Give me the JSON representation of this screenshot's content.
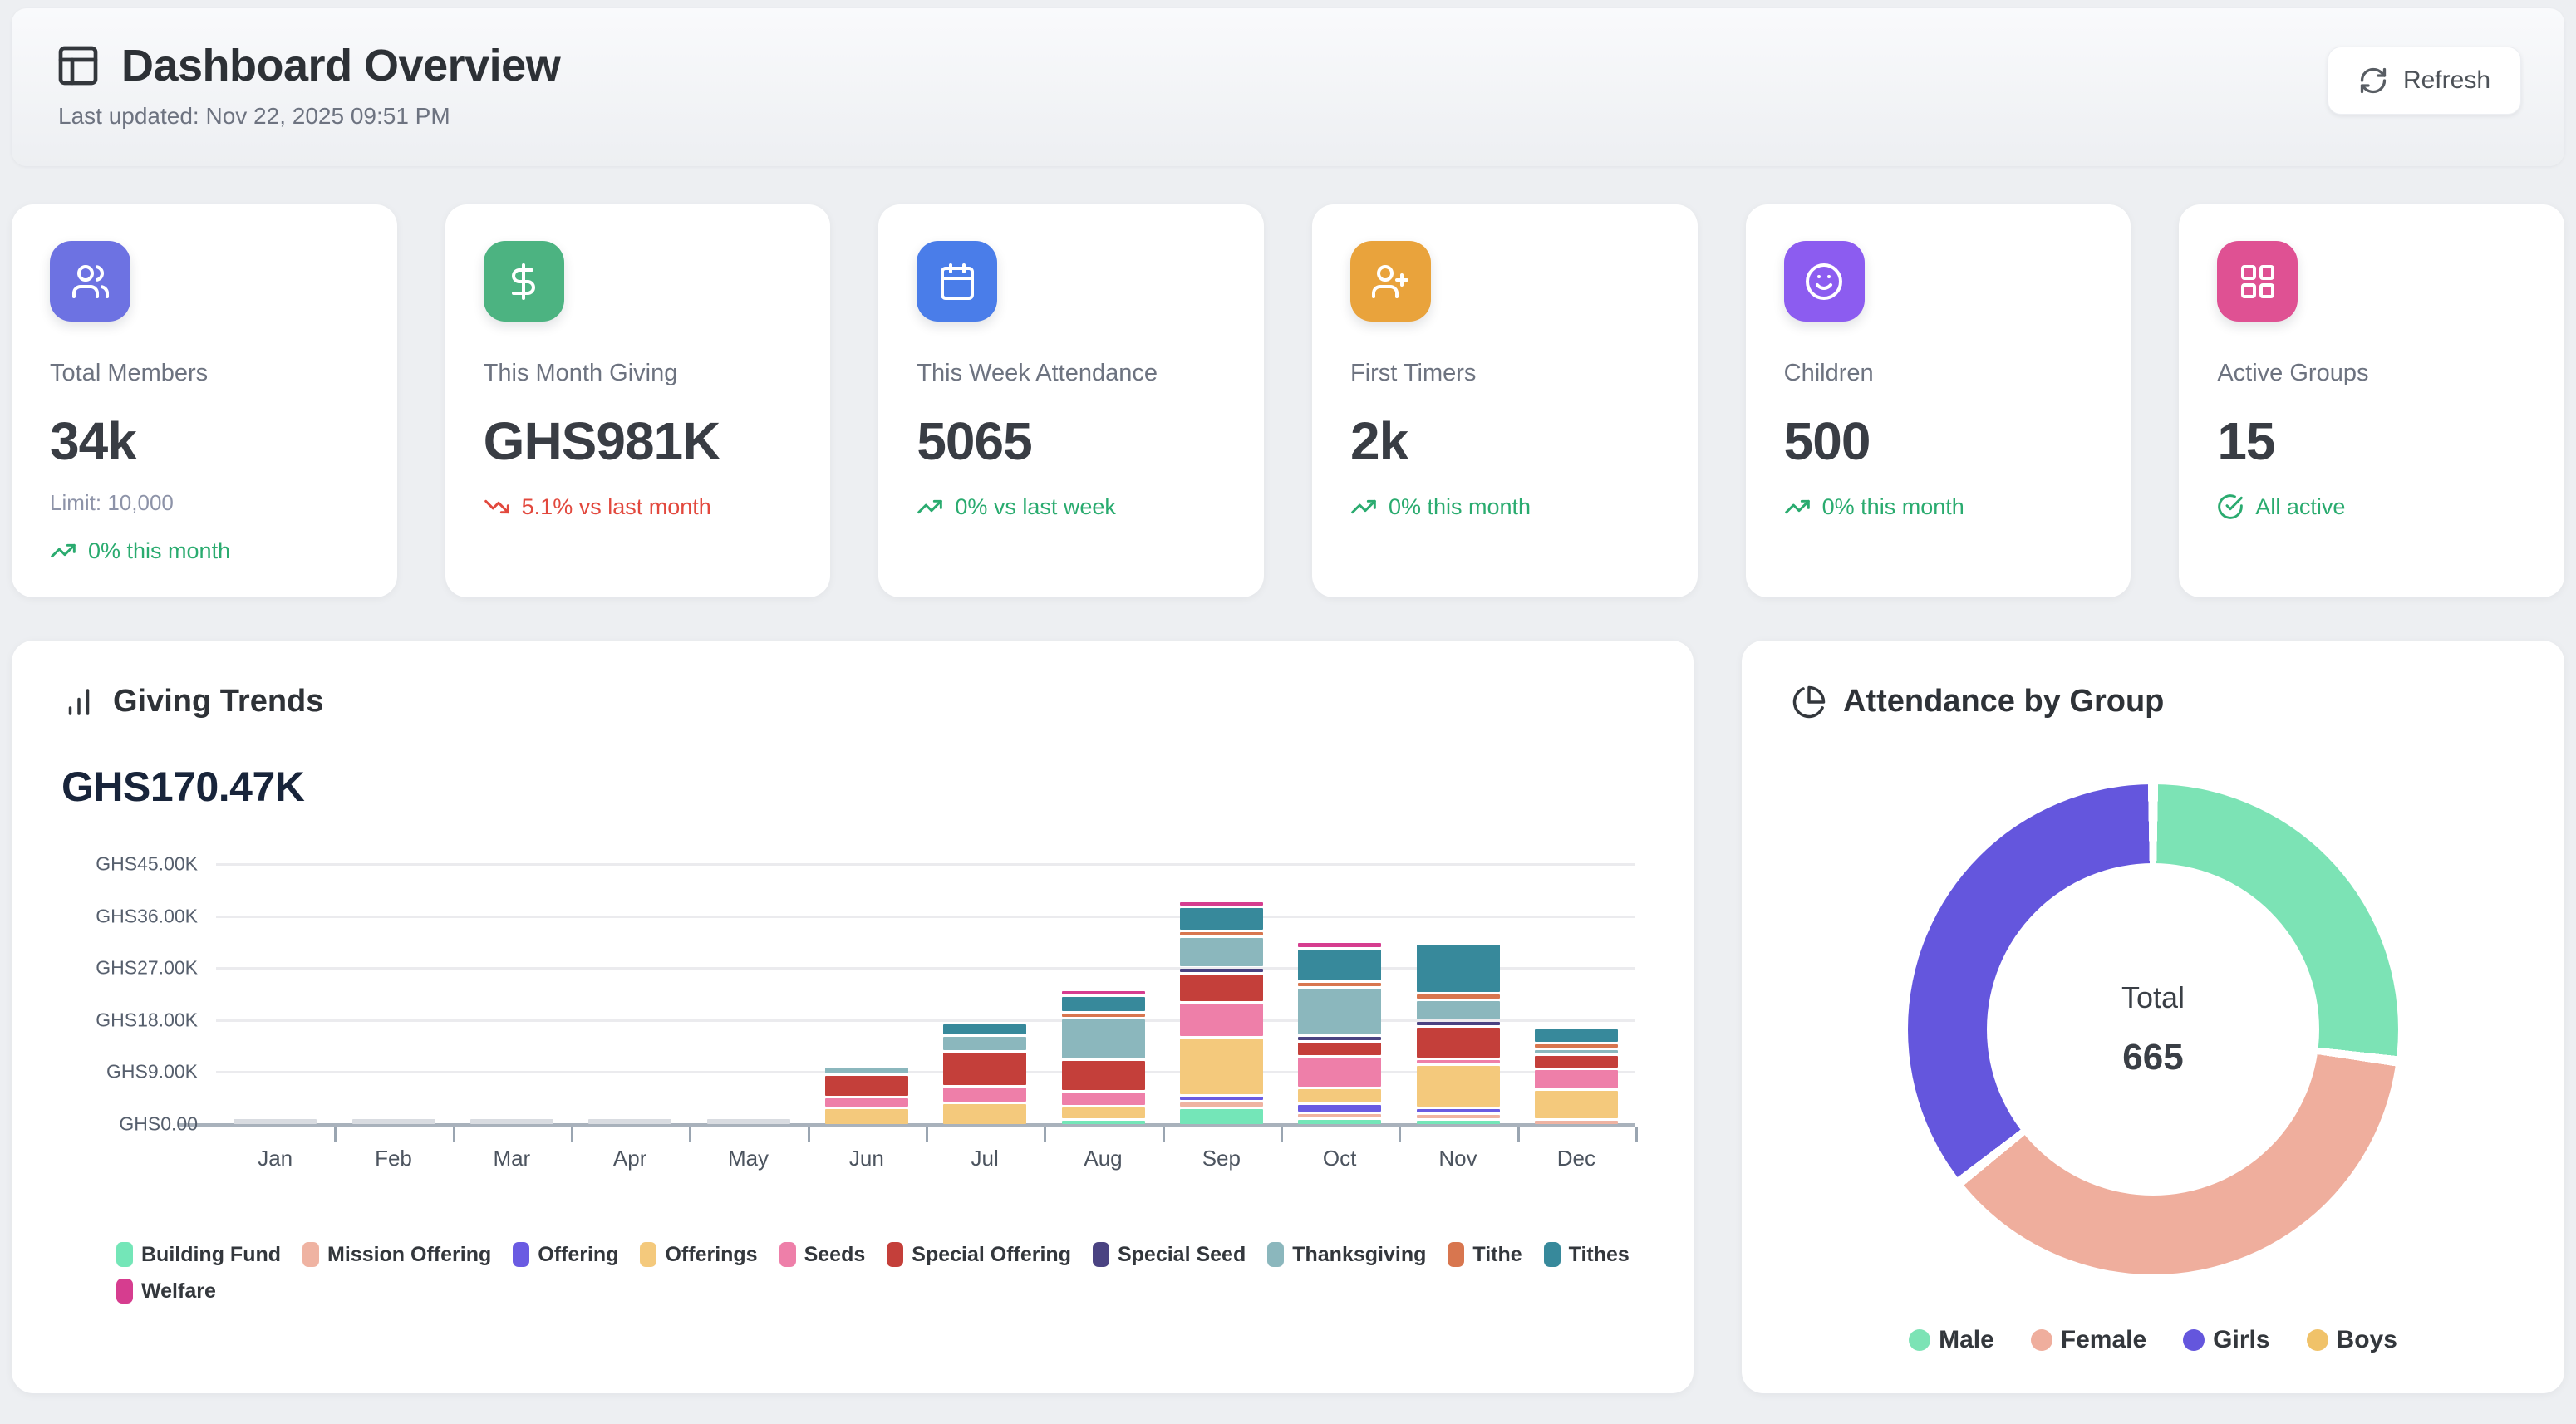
{
  "header": {
    "title": "Dashboard Overview",
    "last_updated": "Last updated: Nov 22, 2025 09:51 PM",
    "refresh_label": "Refresh"
  },
  "stats": [
    {
      "label": "Total Members",
      "value": "34k",
      "sub": "Limit: 10,000",
      "trend": "0% this month",
      "trend_dir": "up",
      "icon": "users-icon",
      "color": "#6d72e2"
    },
    {
      "label": "This Month Giving",
      "value": "GHS981K",
      "trend": "5.1% vs last month",
      "trend_dir": "down",
      "icon": "dollar-icon",
      "color": "#4cb381"
    },
    {
      "label": "This Week Attendance",
      "value": "5065",
      "trend": "0% vs last week",
      "trend_dir": "up",
      "icon": "calendar-icon",
      "color": "#4a7de9"
    },
    {
      "label": "First Timers",
      "value": "2k",
      "trend": "0% this month",
      "trend_dir": "up",
      "icon": "user-plus-icon",
      "color": "#e9a33c"
    },
    {
      "label": "Children",
      "value": "500",
      "trend": "0% this month",
      "trend_dir": "up",
      "icon": "smile-icon",
      "color": "#8c5cf0"
    },
    {
      "label": "Active Groups",
      "value": "15",
      "trend": "All active",
      "trend_dir": "check",
      "icon": "grid-icon",
      "color": "#df5193"
    }
  ],
  "giving": {
    "title": "Giving Trends",
    "amount": "GHS170.47K"
  },
  "attendance": {
    "title": "Attendance by Group",
    "center_label": "Total",
    "center_value": "665"
  },
  "chart_data": [
    {
      "type": "bar",
      "stacked": true,
      "title": "Giving Trends",
      "currency_prefix": "GHS",
      "unit": "thousands GHS",
      "categories": [
        "Jan",
        "Feb",
        "Mar",
        "Apr",
        "May",
        "Jun",
        "Jul",
        "Aug",
        "Sep",
        "Oct",
        "Nov",
        "Dec"
      ],
      "ylim": [
        0,
        45
      ],
      "y_ticks": [
        {
          "label": "GHS45.00K",
          "value": 45
        },
        {
          "label": "GHS36.00K",
          "value": 36
        },
        {
          "label": "GHS27.00K",
          "value": 27
        },
        {
          "label": "GHS18.00K",
          "value": 18
        },
        {
          "label": "GHS9.00K",
          "value": 9
        },
        {
          "label": "GHS0.00",
          "value": 0
        }
      ],
      "grid": true,
      "legend_position": "bottom",
      "series": [
        {
          "name": "Building Fund",
          "color": "#74e6b8",
          "values": [
            0,
            0,
            0,
            0,
            0,
            0,
            0,
            0.2,
            3.0,
            1.1,
            0.9,
            0
          ]
        },
        {
          "name": "Mission Offering",
          "color": "#efb3a2",
          "values": [
            0,
            0,
            0,
            0,
            0,
            0,
            0,
            0,
            1.2,
            0.5,
            0.2,
            0.2
          ]
        },
        {
          "name": "Offering",
          "color": "#6a5be2",
          "values": [
            0,
            0,
            0,
            0,
            0,
            0,
            0,
            0,
            0.7,
            1.6,
            0.4,
            0
          ]
        },
        {
          "name": "Offerings",
          "color": "#f4c97c",
          "values": [
            0,
            0,
            0,
            0,
            0,
            3.0,
            3.9,
            2.3,
            10.0,
            2.7,
            7.5,
            5.2
          ]
        },
        {
          "name": "Seeds",
          "color": "#ee7fa9",
          "values": [
            0,
            0,
            0,
            0,
            0,
            1.8,
            2.9,
            2.6,
            6.1,
            5.4,
            1.0,
            3.6
          ]
        },
        {
          "name": "Special Offering",
          "color": "#c43f3a",
          "values": [
            0,
            0,
            0,
            0,
            0,
            3.9,
            6.0,
            5.4,
            5.0,
            2.6,
            5.6,
            2.4
          ]
        },
        {
          "name": "Special Seed",
          "color": "#4a4382",
          "values": [
            0,
            0,
            0,
            0,
            0,
            0,
            0,
            0,
            0.6,
            1.0,
            1.0,
            0
          ]
        },
        {
          "name": "Thanksgiving",
          "color": "#8bb7bd",
          "values": [
            0,
            0,
            0,
            0,
            0,
            1.5,
            2.8,
            7.2,
            5.3,
            8.3,
            3.6,
            0.3
          ]
        },
        {
          "name": "Tithe",
          "color": "#d8764f",
          "values": [
            0,
            0,
            0,
            0,
            0,
            0,
            0,
            0.4,
            0.6,
            0.5,
            1.2,
            0.2
          ]
        },
        {
          "name": "Tithes",
          "color": "#37899b",
          "values": [
            0,
            0,
            0,
            0,
            0,
            0,
            2.2,
            2.9,
            4.2,
            5.8,
            8.6,
            2.6
          ]
        },
        {
          "name": "Welfare",
          "color": "#d63d8f",
          "values": [
            0,
            0,
            0,
            0,
            0,
            0,
            0,
            0.6,
            0.7,
            1.1,
            0,
            0
          ]
        }
      ],
      "near_zero_stub": {
        "months": [
          "Jan",
          "Feb",
          "Mar",
          "Apr",
          "May"
        ],
        "approx_value_k": 0.15,
        "color": "#d9dce1"
      }
    },
    {
      "type": "pie",
      "donut": true,
      "title": "Attendance by Group",
      "labels": [
        "Male",
        "Female",
        "Girls",
        "Boys"
      ],
      "values": [
        180,
        248,
        237,
        0
      ],
      "colors": [
        "#7ce3b5",
        "#efae9d",
        "#6456dd",
        "#f0c269"
      ],
      "center": {
        "label": "Total",
        "value": 665
      },
      "legend_position": "bottom"
    }
  ]
}
